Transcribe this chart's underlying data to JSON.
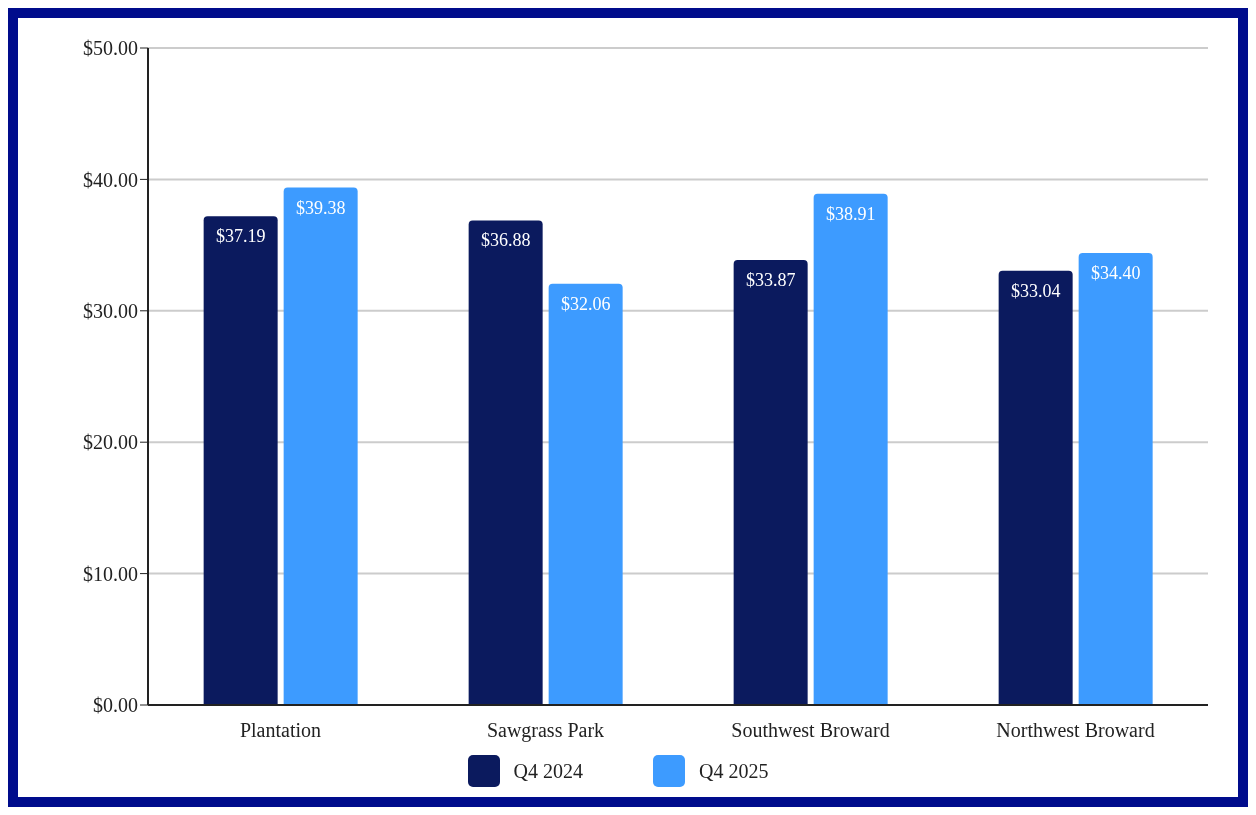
{
  "chart_data": {
    "type": "bar",
    "categories": [
      "Plantation",
      "Sawgrass Park",
      "Southwest Broward",
      "Northwest Broward"
    ],
    "series": [
      {
        "name": "Q4 2024",
        "color": "#0b1a5e",
        "values": [
          37.19,
          36.88,
          33.87,
          33.04
        ],
        "value_labels": [
          "$37.19",
          "$36.88",
          "$33.87",
          "$33.04"
        ]
      },
      {
        "name": "Q4 2025",
        "color": "#3d9bff",
        "values": [
          39.38,
          32.06,
          38.91,
          34.4
        ],
        "value_labels": [
          "$39.38",
          "$32.06",
          "$38.91",
          "$34.40"
        ]
      }
    ],
    "ylim": [
      0,
      50
    ],
    "yticks": [
      {
        "value": 0,
        "label": "$0.00"
      },
      {
        "value": 10,
        "label": "$10.00"
      },
      {
        "value": 20,
        "label": "$20.00"
      },
      {
        "value": 30,
        "label": "$30.00"
      },
      {
        "value": 40,
        "label": "$40.00"
      },
      {
        "value": 50,
        "label": "$50.00"
      }
    ],
    "grid": "y",
    "legend": "bottom"
  }
}
